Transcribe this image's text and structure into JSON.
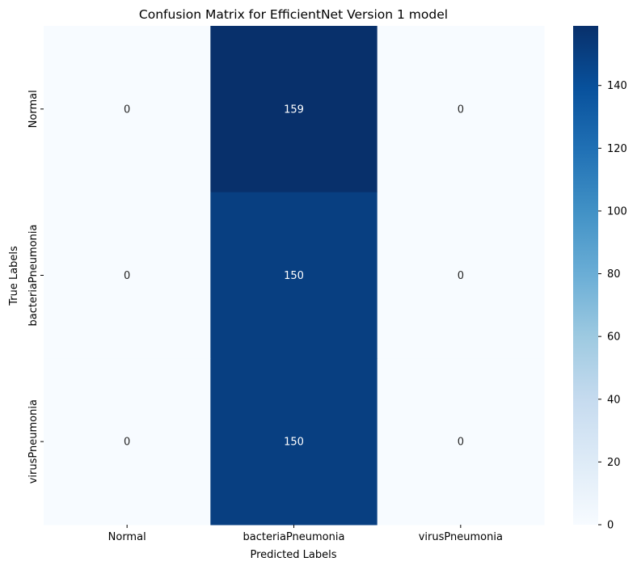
{
  "chart_data": {
    "type": "heatmap",
    "title": "Confusion Matrix for EfficientNet Version 1 model",
    "xlabel": "Predicted Labels",
    "ylabel": "True Labels",
    "x_categories": [
      "Normal",
      "bacteriaPneumonia",
      "virusPneumonia"
    ],
    "y_categories": [
      "Normal",
      "bacteriaPneumonia",
      "virusPneumonia"
    ],
    "values": [
      [
        0,
        159,
        0
      ],
      [
        0,
        150,
        0
      ],
      [
        0,
        150,
        0
      ]
    ],
    "colormap": "Blues",
    "color_range": [
      0,
      159
    ],
    "colorbar_ticks": [
      0,
      20,
      40,
      60,
      80,
      100,
      120,
      140
    ],
    "annotations": true,
    "grid": false,
    "colors": {
      "low": "#f7fbff",
      "high": "#08306b",
      "text_dark": "#262626",
      "text_light": "#ffffff"
    }
  }
}
